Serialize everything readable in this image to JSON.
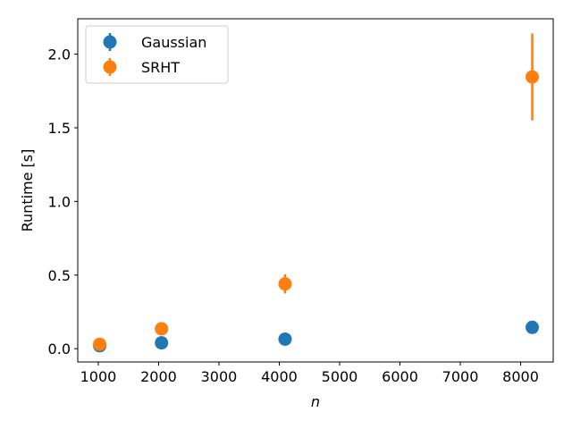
{
  "chart_data": {
    "type": "scatter",
    "title": "",
    "xlabel": "n",
    "ylabel": "Runtime [s]",
    "xlim": [
      660,
      8540
    ],
    "ylim": [
      -0.09,
      2.24
    ],
    "xticks": [
      1000,
      2000,
      3000,
      4000,
      5000,
      6000,
      7000,
      8000
    ],
    "xtick_labels": [
      "1000",
      "2000",
      "3000",
      "4000",
      "5000",
      "6000",
      "7000",
      "8000"
    ],
    "yticks": [
      0.0,
      0.5,
      1.0,
      1.5,
      2.0
    ],
    "ytick_labels": [
      "0.0",
      "0.5",
      "1.0",
      "1.5",
      "2.0"
    ],
    "grid": false,
    "legend_position": "top-left",
    "error_bars": true,
    "series": [
      {
        "name": "Gaussian",
        "color": "#1f77b4",
        "x": [
          1024,
          2048,
          4096,
          8192
        ],
        "y": [
          0.02,
          0.04,
          0.065,
          0.145
        ],
        "err": [
          0.005,
          0.007,
          0.01,
          0.03
        ]
      },
      {
        "name": "SRHT",
        "color": "#ff7f0e",
        "x": [
          1024,
          2048,
          4096,
          8192
        ],
        "y": [
          0.03,
          0.135,
          0.44,
          1.845
        ],
        "err": [
          0.01,
          0.015,
          0.065,
          0.295
        ]
      }
    ]
  }
}
